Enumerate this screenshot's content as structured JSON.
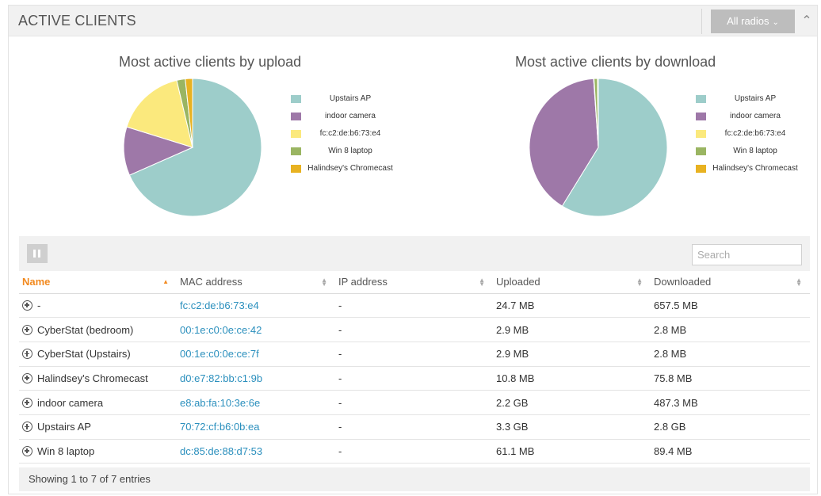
{
  "panel": {
    "title": "ACTIVE CLIENTS",
    "radio_filter": "All radios",
    "chevron_icon": "chevron-down-icon",
    "collapse_icon": "chevron-up-icon"
  },
  "colors": {
    "teal": "#9dcdca",
    "purple": "#9e78a8",
    "yellow": "#fbe97d",
    "green": "#9ab562",
    "orange": "#e8b221",
    "accent": "#f28a20",
    "link": "#2a8fbd"
  },
  "chart_data": [
    {
      "type": "pie",
      "title": "Most active clients by upload",
      "labels": [
        "Upstairs AP",
        "indoor camera",
        "fc:c2:de:b6:73:e4",
        "Win 8 laptop",
        "Halindsey's Chromecast"
      ],
      "values": [
        68.4,
        11.4,
        16.5,
        2.0,
        1.7
      ],
      "colors": [
        "#9dcdca",
        "#9e78a8",
        "#fbe97d",
        "#9ab562",
        "#e8b221"
      ],
      "legend_position": "right"
    },
    {
      "type": "pie",
      "title": "Most active clients by download",
      "labels": [
        "Upstairs AP",
        "indoor camera",
        "fc:c2:de:b6:73:e4",
        "Win 8 laptop",
        "Halindsey's Chromecast"
      ],
      "values": [
        58.9,
        40.2,
        0.1,
        0.8,
        0.2
      ],
      "colors": [
        "#9dcdca",
        "#9e78a8",
        "#fbe97d",
        "#9ab562",
        "#e8b221"
      ],
      "legend_position": "right"
    }
  ],
  "table": {
    "search_placeholder": "Search",
    "columns_icon": "columns-icon",
    "columns": [
      "Name",
      "MAC address",
      "IP address",
      "Uploaded",
      "Downloaded"
    ],
    "sorted_column": "Name",
    "rows": [
      {
        "name": "-",
        "mac": "fc:c2:de:b6:73:e4",
        "ip": "-",
        "uploaded": "24.7 MB",
        "downloaded": "657.5 MB"
      },
      {
        "name": "CyberStat (bedroom)",
        "mac": "00:1e:c0:0e:ce:42",
        "ip": "-",
        "uploaded": "2.9 MB",
        "downloaded": "2.8 MB"
      },
      {
        "name": "CyberStat (Upstairs)",
        "mac": "00:1e:c0:0e:ce:7f",
        "ip": "-",
        "uploaded": "2.9 MB",
        "downloaded": "2.8 MB"
      },
      {
        "name": "Halindsey's Chromecast",
        "mac": "d0:e7:82:bb:c1:9b",
        "ip": "-",
        "uploaded": "10.8 MB",
        "downloaded": "75.8 MB"
      },
      {
        "name": "indoor camera",
        "mac": "e8:ab:fa:10:3e:6e",
        "ip": "-",
        "uploaded": "2.2 GB",
        "downloaded": "487.3 MB"
      },
      {
        "name": "Upstairs AP",
        "mac": "70:72:cf:b6:0b:ea",
        "ip": "-",
        "uploaded": "3.3 GB",
        "downloaded": "2.8 GB"
      },
      {
        "name": "Win 8 laptop",
        "mac": "dc:85:de:88:d7:53",
        "ip": "-",
        "uploaded": "61.1 MB",
        "downloaded": "89.4 MB"
      }
    ],
    "row_icon": "expand-plus-icon",
    "footer": "Showing 1 to 7 of 7 entries"
  }
}
